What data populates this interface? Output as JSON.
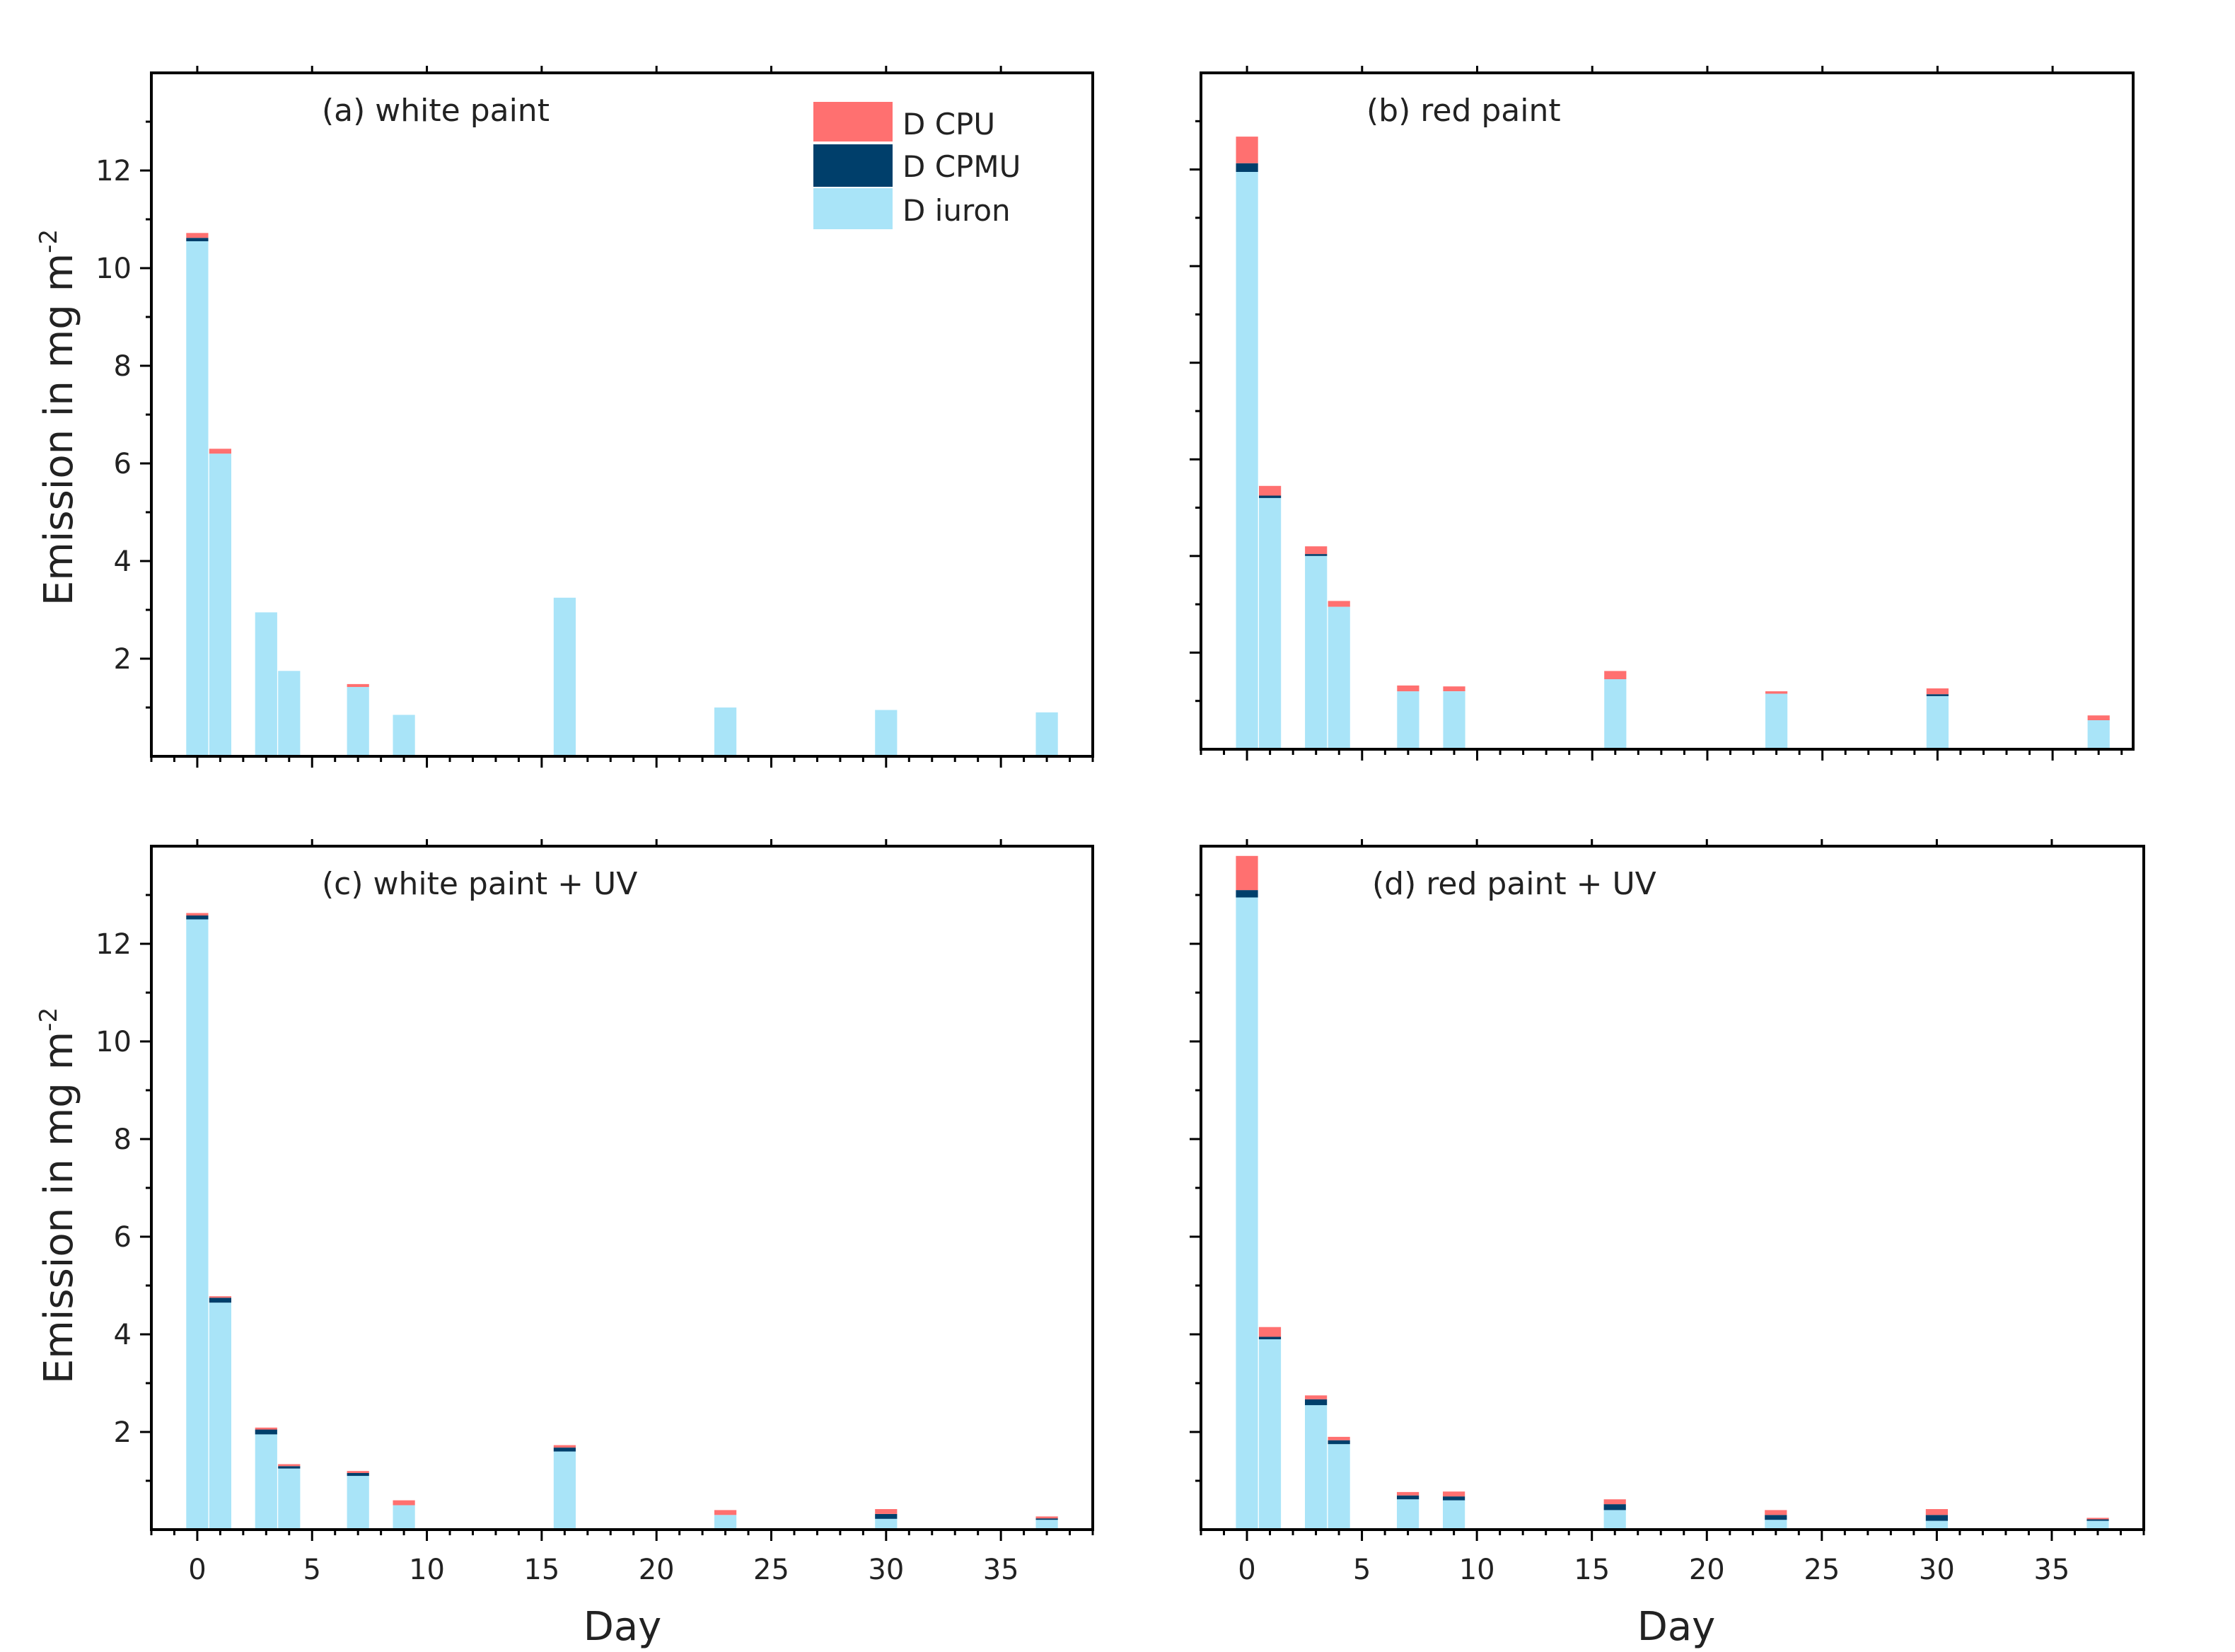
{
  "colors": {
    "DCPU": "#ff7070",
    "DCPMU": "#003f6b",
    "Diuron": "#a9e4f8"
  },
  "legend": {
    "items": [
      {
        "label": "D CPU",
        "series": "DCPU"
      },
      {
        "label": "D CPMU",
        "series": "DCPMU"
      },
      {
        "label": "D iuron",
        "series": "Diuron"
      }
    ]
  },
  "axis_labels": {
    "ylabel": "Emission in mg m",
    "ylabel_sup": "-2",
    "xlabel": "Day"
  },
  "chart_data": [
    {
      "type": "bar",
      "stacked": true,
      "title": "(a) white paint",
      "xlabel": "",
      "ylabel": "Emission in mg m-2",
      "xlim": [
        -2,
        39
      ],
      "ylim": [
        0,
        14
      ],
      "x_ticks": [
        0,
        5,
        10,
        15,
        20,
        25,
        30,
        35
      ],
      "y_ticks": [
        2,
        4,
        6,
        8,
        10,
        12
      ],
      "x": [
        0,
        1,
        3,
        4,
        7,
        9,
        16,
        23,
        30,
        37
      ],
      "series": [
        {
          "name": "Diuron",
          "values": [
            10.55,
            6.2,
            2.95,
            1.75,
            1.42,
            0.85,
            3.25,
            1.0,
            0.95,
            0.9
          ]
        },
        {
          "name": "DCPMU",
          "values": [
            0.07,
            0.0,
            0.0,
            0.0,
            0.0,
            0.0,
            0.0,
            0.0,
            0.0,
            0.0
          ]
        },
        {
          "name": "DCPU",
          "values": [
            0.1,
            0.1,
            0.0,
            0.0,
            0.06,
            0.0,
            0.0,
            0.0,
            0.0,
            0.0
          ]
        }
      ]
    },
    {
      "type": "bar",
      "stacked": true,
      "title": "(b) red paint",
      "xlabel": "",
      "ylabel": "",
      "xlim": [
        -2,
        38.5
      ],
      "ylim": [
        0,
        14
      ],
      "x_ticks": [
        0,
        5,
        10,
        15,
        20,
        25,
        30,
        35
      ],
      "y_ticks": [
        2,
        4,
        6,
        8,
        10,
        12
      ],
      "x": [
        0,
        1,
        3,
        4,
        7,
        9,
        16,
        23,
        30,
        37
      ],
      "series": [
        {
          "name": "Diuron",
          "values": [
            11.95,
            5.2,
            4.0,
            2.95,
            1.2,
            1.2,
            1.45,
            1.15,
            1.1,
            0.6
          ]
        },
        {
          "name": "DCPMU",
          "values": [
            0.18,
            0.05,
            0.04,
            0.0,
            0.0,
            0.0,
            0.0,
            0.0,
            0.04,
            0.0
          ]
        },
        {
          "name": "DCPU",
          "values": [
            0.55,
            0.2,
            0.16,
            0.12,
            0.12,
            0.1,
            0.17,
            0.05,
            0.12,
            0.1
          ]
        }
      ]
    },
    {
      "type": "bar",
      "stacked": true,
      "title": "(c) white paint + UV",
      "xlabel": "Day",
      "ylabel": "Emission in mg m-2",
      "xlim": [
        -2,
        39
      ],
      "ylim": [
        0,
        14
      ],
      "x_ticks": [
        0,
        5,
        10,
        15,
        20,
        25,
        30,
        35
      ],
      "y_ticks": [
        2,
        4,
        6,
        8,
        10,
        12
      ],
      "x": [
        0,
        1,
        3,
        4,
        7,
        9,
        16,
        23,
        30,
        37
      ],
      "series": [
        {
          "name": "Diuron",
          "values": [
            12.5,
            4.65,
            1.95,
            1.25,
            1.1,
            0.5,
            1.6,
            0.3,
            0.22,
            0.2
          ]
        },
        {
          "name": "DCPMU",
          "values": [
            0.08,
            0.1,
            0.1,
            0.05,
            0.06,
            0.0,
            0.08,
            0.0,
            0.1,
            0.03
          ]
        },
        {
          "name": "DCPU",
          "values": [
            0.05,
            0.03,
            0.04,
            0.04,
            0.04,
            0.1,
            0.05,
            0.1,
            0.1,
            0.04
          ]
        }
      ]
    },
    {
      "type": "bar",
      "stacked": true,
      "title": "(d) red paint + UV",
      "xlabel": "Day",
      "ylabel": "",
      "xlim": [
        -2,
        39
      ],
      "ylim": [
        0,
        14
      ],
      "x_ticks": [
        0,
        5,
        10,
        15,
        20,
        25,
        30,
        35
      ],
      "y_ticks": [
        2,
        4,
        6,
        8,
        10,
        12
      ],
      "x": [
        0,
        1,
        3,
        4,
        7,
        9,
        16,
        23,
        30,
        37
      ],
      "series": [
        {
          "name": "Diuron",
          "values": [
            12.95,
            3.9,
            2.55,
            1.75,
            0.62,
            0.6,
            0.4,
            0.2,
            0.18,
            0.18
          ]
        },
        {
          "name": "DCPMU",
          "values": [
            0.15,
            0.05,
            0.12,
            0.08,
            0.08,
            0.08,
            0.12,
            0.1,
            0.12,
            0.03
          ]
        },
        {
          "name": "DCPU",
          "values": [
            0.7,
            0.2,
            0.08,
            0.07,
            0.07,
            0.1,
            0.1,
            0.1,
            0.12,
            0.03
          ]
        }
      ]
    }
  ]
}
